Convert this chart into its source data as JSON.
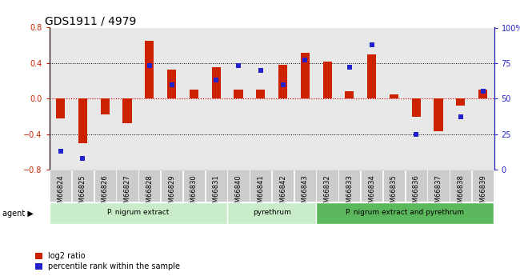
{
  "title": "GDS1911 / 4979",
  "samples": [
    "GSM66824",
    "GSM66825",
    "GSM66826",
    "GSM66827",
    "GSM66828",
    "GSM66829",
    "GSM66830",
    "GSM66831",
    "GSM66840",
    "GSM66841",
    "GSM66842",
    "GSM66843",
    "GSM66832",
    "GSM66833",
    "GSM66834",
    "GSM66835",
    "GSM66836",
    "GSM66837",
    "GSM66838",
    "GSM66839"
  ],
  "log2_ratio": [
    -0.22,
    -0.5,
    -0.18,
    -0.28,
    0.65,
    0.33,
    0.1,
    0.35,
    0.1,
    0.1,
    0.38,
    0.52,
    0.42,
    0.08,
    0.5,
    0.05,
    -0.2,
    -0.37,
    -0.08,
    0.1
  ],
  "percentile_rank": [
    13,
    8,
    null,
    null,
    73,
    60,
    null,
    63,
    73,
    70,
    60,
    77,
    null,
    72,
    88,
    null,
    25,
    null,
    37,
    55
  ],
  "group_borders": [
    0,
    8,
    12,
    20
  ],
  "group_labels": [
    "P. nigrum extract",
    "pyrethrum",
    "P. nigrum extract and pyrethrum"
  ],
  "group_colors": [
    "#c8edc8",
    "#c8edc8",
    "#5cb85c"
  ],
  "ylim_left": [
    -0.8,
    0.8
  ],
  "ylim_right": [
    0,
    100
  ],
  "yticks_left": [
    -0.8,
    -0.4,
    0.0,
    0.4,
    0.8
  ],
  "yticks_right": [
    0,
    25,
    50,
    75,
    100
  ],
  "yticklabels_right": [
    "0",
    "25",
    "50",
    "75",
    "100%"
  ],
  "bar_color": "#cc2200",
  "dot_color": "#2222cc",
  "zero_line_color": "#cc0000",
  "legend_items": [
    "log2 ratio",
    "percentile rank within the sample"
  ],
  "legend_colors": [
    "#cc2200",
    "#2222cc"
  ],
  "plot_bg": "#e8e8e8",
  "tick_box_color": "#cccccc",
  "title_fontsize": 10,
  "axis_fontsize": 7,
  "sample_fontsize": 6
}
